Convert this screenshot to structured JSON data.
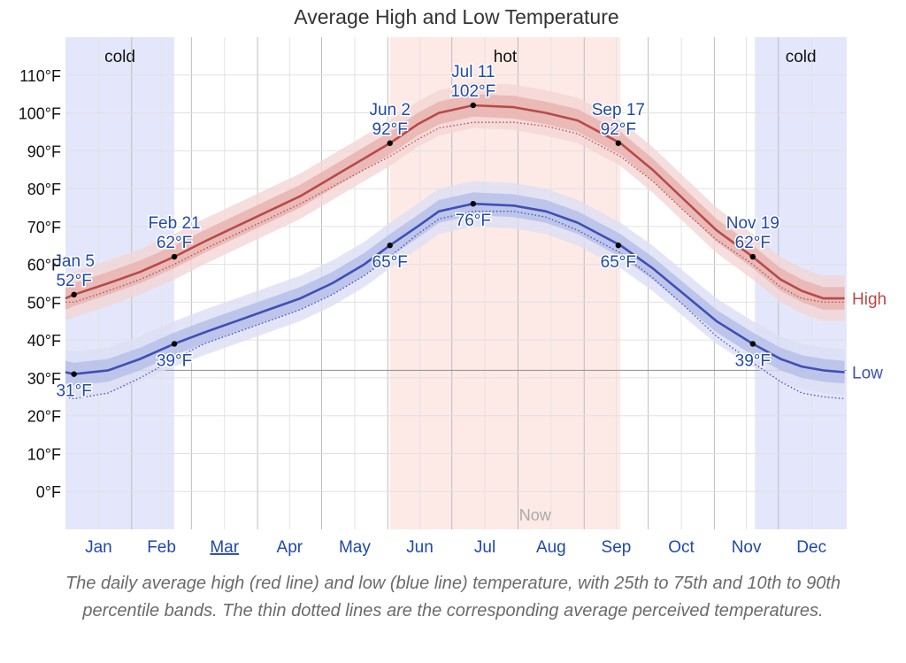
{
  "chart_data": {
    "type": "line",
    "title": "Average High and Low Temperature",
    "caption": "The daily average high (red line) and low (blue line) temperature, with 25th to 75th and 10th to 90th percentile bands. The thin dotted lines are the corresponding average perceived temperatures.",
    "y_unit": "°F",
    "ylim": [
      -10,
      120
    ],
    "yticks": [
      0,
      10,
      20,
      30,
      40,
      50,
      60,
      70,
      80,
      90,
      100,
      110
    ],
    "ytick_labels": [
      "0°F",
      "10°F",
      "20°F",
      "30°F",
      "40°F",
      "50°F",
      "60°F",
      "70°F",
      "80°F",
      "90°F",
      "100°F",
      "110°F"
    ],
    "reference_line": 32,
    "xlim": [
      0,
      366
    ],
    "months": [
      "Jan",
      "Feb",
      "Mar",
      "Apr",
      "May",
      "Jun",
      "Jul",
      "Aug",
      "Sep",
      "Oct",
      "Nov",
      "Dec"
    ],
    "current_month": "Mar",
    "seasons": [
      {
        "label": "cold",
        "start": 0,
        "end": 51
      },
      {
        "label": "hot",
        "start": 152,
        "end": 260
      },
      {
        "label": "cold",
        "start": 323,
        "end": 366
      }
    ],
    "now_label": "Now",
    "now_day": 220,
    "series": [
      {
        "name": "High",
        "color": "#b84a47",
        "band_inner": "#e7b4b1",
        "band_outer": "#f3d6d4",
        "x": [
          0,
          4,
          20,
          35,
          51,
          65,
          80,
          95,
          110,
          125,
          140,
          152,
          165,
          175,
          191,
          210,
          225,
          240,
          260,
          275,
          290,
          305,
          322,
          335,
          345,
          355,
          365
        ],
        "values": [
          51,
          52,
          55,
          58,
          62,
          66,
          70,
          74,
          78,
          83,
          88,
          92,
          97,
          100,
          102,
          101.5,
          100,
          98,
          92,
          85,
          77,
          69,
          62,
          56,
          53,
          51,
          51
        ],
        "p25": [
          48,
          49,
          52,
          55,
          59,
          63,
          67,
          71,
          75,
          80,
          85,
          89,
          94,
          97,
          99,
          98.5,
          97,
          95,
          89,
          82,
          74,
          66,
          59,
          53,
          50,
          48,
          48
        ],
        "p75": [
          54,
          55,
          58,
          61,
          65,
          69,
          73,
          77,
          81,
          86,
          91,
          95,
          100,
          103,
          105,
          104.5,
          103,
          101,
          95,
          88,
          80,
          72,
          65,
          59,
          56,
          54,
          54
        ],
        "p10": [
          45,
          46,
          49,
          52,
          56,
          60,
          64,
          68,
          72,
          77,
          82,
          86,
          91,
          94,
          96,
          95.5,
          94,
          92,
          86,
          79,
          71,
          63,
          56,
          50,
          47,
          45,
          45
        ],
        "p90": [
          57,
          58,
          61,
          64,
          68,
          72,
          76,
          80,
          84,
          89,
          94,
          98,
          103,
          106,
          108,
          107.5,
          106,
          104,
          98,
          91,
          83,
          75,
          68,
          62,
          59,
          57,
          57
        ],
        "perceived": [
          50,
          50,
          53,
          56,
          60,
          64,
          68,
          72,
          76,
          80.5,
          85,
          88.5,
          93,
          96,
          97.5,
          97.5,
          96.5,
          94.5,
          88.5,
          82,
          74,
          66.5,
          60,
          54,
          51,
          50,
          50
        ]
      },
      {
        "name": "Low",
        "color": "#3f4fb5",
        "band_inner": "#b7bfe9",
        "band_outer": "#dcdff5",
        "x": [
          0,
          4,
          20,
          35,
          51,
          65,
          80,
          95,
          110,
          125,
          140,
          152,
          165,
          175,
          191,
          210,
          225,
          240,
          260,
          275,
          290,
          305,
          322,
          335,
          345,
          355,
          365
        ],
        "values": [
          31.5,
          31,
          32,
          35,
          39,
          42,
          45,
          48,
          51,
          55,
          60,
          65,
          70,
          74,
          76,
          75.5,
          74,
          71,
          65,
          59,
          52,
          45,
          39,
          35,
          33,
          32,
          31.5
        ],
        "p25": [
          28.5,
          28,
          29,
          32,
          36,
          39,
          42,
          45,
          48,
          52,
          57,
          62,
          67,
          71,
          73,
          72.5,
          71,
          68,
          62,
          56,
          49,
          42,
          36,
          32,
          30,
          29,
          28.5
        ],
        "p75": [
          34.5,
          34,
          35,
          38,
          42,
          45,
          48,
          51,
          54,
          58,
          63,
          68,
          73,
          77,
          79,
          78.5,
          77,
          74,
          68,
          62,
          55,
          48,
          42,
          38,
          36,
          35,
          34.5
        ],
        "p10": [
          25.5,
          25,
          26,
          29,
          33,
          36,
          39,
          42,
          45,
          49,
          54,
          59,
          64,
          68,
          70,
          69.5,
          68,
          65,
          59,
          53,
          46,
          39,
          33,
          29,
          27,
          26,
          25.5
        ],
        "p90": [
          37.5,
          37,
          38,
          41,
          45,
          48,
          51,
          54,
          57,
          61,
          66,
          71,
          76,
          80,
          82,
          81.5,
          80,
          77,
          71,
          65,
          58,
          51,
          45,
          41,
          39,
          38,
          37.5
        ],
        "perceived": [
          25,
          24.5,
          26,
          30,
          35,
          39,
          42,
          45,
          48,
          52,
          57,
          62,
          68,
          72,
          74,
          74,
          72.5,
          69,
          63,
          56.5,
          49,
          41,
          34,
          29,
          26,
          25,
          24.5
        ]
      }
    ],
    "annotations": [
      {
        "series": "High",
        "day": 4,
        "value": 52,
        "date": "Jan 5",
        "label": "52°F",
        "position": "above"
      },
      {
        "series": "High",
        "day": 51,
        "value": 62,
        "date": "Feb 21",
        "label": "62°F",
        "position": "above"
      },
      {
        "series": "High",
        "day": 152,
        "value": 92,
        "date": "Jun 2",
        "label": "92°F",
        "position": "above"
      },
      {
        "series": "High",
        "day": 191,
        "value": 102,
        "date": "Jul 11",
        "label": "102°F",
        "position": "above"
      },
      {
        "series": "High",
        "day": 259,
        "value": 92,
        "date": "Sep 17",
        "label": "92°F",
        "position": "above"
      },
      {
        "series": "High",
        "day": 322,
        "value": 62,
        "date": "Nov 19",
        "label": "62°F",
        "position": "above"
      },
      {
        "series": "Low",
        "day": 4,
        "value": 31,
        "date": "",
        "label": "31°F",
        "position": "below"
      },
      {
        "series": "Low",
        "day": 51,
        "value": 39,
        "date": "",
        "label": "39°F",
        "position": "below"
      },
      {
        "series": "Low",
        "day": 152,
        "value": 65,
        "date": "",
        "label": "65°F",
        "position": "below"
      },
      {
        "series": "Low",
        "day": 191,
        "value": 76,
        "date": "",
        "label": "76°F",
        "position": "below"
      },
      {
        "series": "Low",
        "day": 259,
        "value": 65,
        "date": "",
        "label": "65°F",
        "position": "below"
      },
      {
        "series": "Low",
        "day": 322,
        "value": 39,
        "date": "",
        "label": "39°F",
        "position": "below"
      }
    ]
  }
}
